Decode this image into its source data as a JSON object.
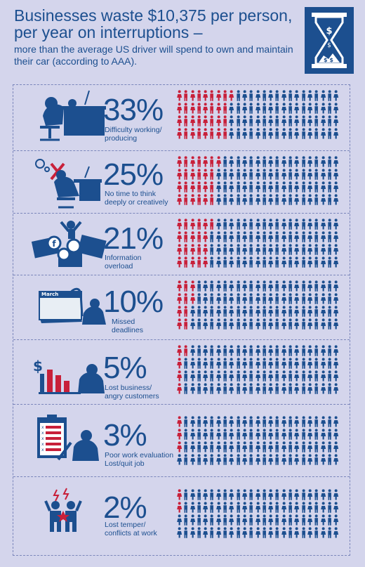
{
  "header": {
    "title": "Businesses waste $10,375 per person, per year on interruptions –",
    "subtitle": "more than the average US driver will spend to own and maintain their car (according to AAA).",
    "icon": "hourglass-money-icon"
  },
  "colors": {
    "blue": "#1c4f8f",
    "red": "#c8203a",
    "panel_bg": "#d4d5ec"
  },
  "stats": [
    {
      "percent": "33%",
      "label": "Difficulty working/\nproducing",
      "icon": "frustrated-worker-icon",
      "affected_fraction": 0.33
    },
    {
      "percent": "25%",
      "label": "No time to think\ndeeply or creatively",
      "icon": "no-thinking-worker-icon",
      "affected_fraction": 0.25
    },
    {
      "percent": "21%",
      "label": "Information\noverload",
      "icon": "social-media-overload-icon",
      "affected_fraction": 0.21
    },
    {
      "percent": "10%",
      "label": "Missed\ndeadlines",
      "icon": "calendar-deadline-icon",
      "month": "March",
      "affected_fraction": 0.1
    },
    {
      "percent": "5%",
      "label": "Lost business/\nangry customers",
      "icon": "declining-sales-icon",
      "affected_fraction": 0.05
    },
    {
      "percent": "3%",
      "label": "Poor work evaluation\nLost/quit job",
      "icon": "evaluation-clipboard-icon",
      "affected_fraction": 0.03
    },
    {
      "percent": "2%",
      "label": "Lost temper/\nconflicts at work",
      "icon": "conflict-icon",
      "affected_fraction": 0.02
    }
  ]
}
